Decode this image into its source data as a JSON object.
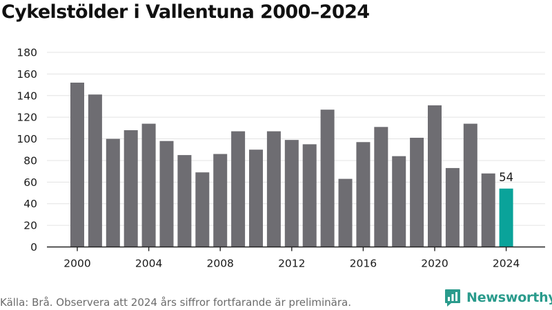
{
  "title": "Cykelstölder i Vallentuna 2000–2024",
  "source": "Källa: Brå. Observera att 2024 års siffror fortfarande är preliminära.",
  "brand": {
    "name": "Newsworthy",
    "icon": "newsworthy-logo-icon",
    "color": "#2a9b8c"
  },
  "colors": {
    "bar": "#6e6d72",
    "highlight": "#0aa39a",
    "grid": "#e3e3e3",
    "axis": "#222222",
    "text": "#1a1a1a"
  },
  "chart_data": {
    "type": "bar",
    "title": "Cykelstölder i Vallentuna 2000–2024",
    "xlabel": "",
    "ylabel": "",
    "ylim": [
      0,
      180
    ],
    "yticks": [
      "0",
      "20",
      "40",
      "60",
      "80",
      "100",
      "120",
      "140",
      "160",
      "180"
    ],
    "xticks": [
      "2000",
      "2004",
      "2008",
      "2012",
      "2016",
      "2020",
      "2024"
    ],
    "grid": true,
    "categories": [
      2000,
      2001,
      2002,
      2003,
      2004,
      2005,
      2006,
      2007,
      2008,
      2009,
      2010,
      2011,
      2012,
      2013,
      2014,
      2015,
      2016,
      2017,
      2018,
      2019,
      2020,
      2021,
      2022,
      2023,
      2024
    ],
    "values": [
      152,
      141,
      100,
      108,
      114,
      98,
      85,
      69,
      86,
      107,
      90,
      107,
      99,
      95,
      127,
      63,
      97,
      111,
      84,
      101,
      131,
      73,
      114,
      68,
      54
    ],
    "highlight": {
      "category": 2024,
      "value": 54,
      "label": "54"
    }
  }
}
